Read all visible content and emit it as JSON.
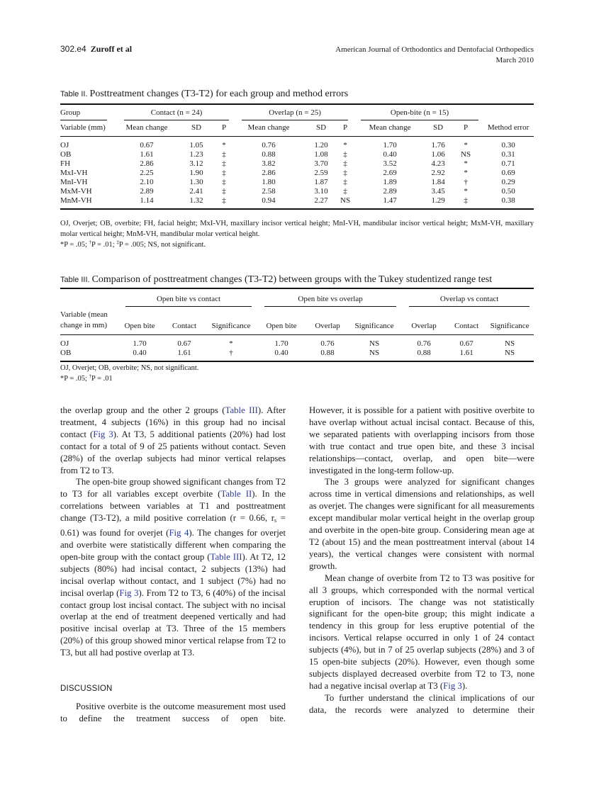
{
  "header": {
    "page": "302.e4",
    "authors": "Zuroff et al",
    "journal": "American Journal of Orthodontics and Dentofacial Orthopedics",
    "date": "March 2010"
  },
  "colors": {
    "link": "#2b3a9c",
    "text": "#1a1a1a"
  },
  "table2": {
    "label": "Table II.",
    "title": "Posttreatment changes (T3-T2) for each group and method errors",
    "group_label": "Group",
    "groups": [
      "Contact (n = 24)",
      "Overlap (n = 25)",
      "Open-bite (n = 15)"
    ],
    "columns": [
      "Variable (mm)",
      "Mean change",
      "SD",
      "P",
      "Mean change",
      "SD",
      "P",
      "Mean change",
      "SD",
      "P",
      "Method error"
    ],
    "rows": [
      [
        "OJ",
        "0.67",
        "1.05",
        "*",
        "0.76",
        "1.20",
        "*",
        "1.70",
        "1.76",
        "*",
        "0.30"
      ],
      [
        "OB",
        "1.61",
        "1.23",
        "‡",
        "0.88",
        "1.08",
        "‡",
        "0.40",
        "1.06",
        "NS",
        "0.31"
      ],
      [
        "FH",
        "2.86",
        "3.12",
        "‡",
        "3.82",
        "3.70",
        "‡",
        "3.52",
        "4.23",
        "*",
        "0.71"
      ],
      [
        "MxI-VH",
        "2.25",
        "1.90",
        "‡",
        "2.86",
        "2.59",
        "‡",
        "2.69",
        "2.92",
        "*",
        "0.69"
      ],
      [
        "MnI-VH",
        "2.10",
        "1.30",
        "‡",
        "1.80",
        "1.87",
        "‡",
        "1.89",
        "1.84",
        "†",
        "0.29"
      ],
      [
        "MxM-VH",
        "2.89",
        "2.41",
        "‡",
        "2.58",
        "3.10",
        "‡",
        "2.89",
        "3.45",
        "*",
        "0.50"
      ],
      [
        "MnM-VH",
        "1.14",
        "1.32",
        "‡",
        "0.94",
        "2.27",
        "NS",
        "1.47",
        "1.29",
        "‡",
        "0.38"
      ]
    ],
    "footnote1": "OJ, Overjet; OB, overbite; FH, facial height; MxI-VH, maxillary incisor vertical height; MnI-VH, mandibular incisor vertical height; MxM-VH, maxillary molar vertical height; MnM-VH, mandibular molar vertical height.",
    "footnote2": [
      "*P = .05; ",
      "†",
      "P = .01; ",
      "‡",
      "P = .005; NS, not significant."
    ]
  },
  "table3": {
    "label": "Table III.",
    "title": "Comparison of posttreatment changes (T3-T2) between groups with the Tukey studentized range test",
    "groups": [
      "Open bite vs contact",
      "Open bite vs overlap",
      "Overlap vs contact"
    ],
    "columns": [
      "Variable (mean change in mm)",
      "Open bite",
      "Contact",
      "Significance",
      "Open bite",
      "Overlap",
      "Significance",
      "Overlap",
      "Contact",
      "Significance"
    ],
    "rows": [
      [
        "OJ",
        "1.70",
        "0.67",
        "*",
        "1.70",
        "0.76",
        "NS",
        "0.76",
        "0.67",
        "NS"
      ],
      [
        "OB",
        "0.40",
        "1.61",
        "†",
        "0.40",
        "0.88",
        "NS",
        "0.88",
        "1.61",
        "NS"
      ]
    ],
    "footnote1": "OJ, Overjet; OB, overbite; NS, not significant.",
    "footnote2": [
      "*P = .05; ",
      "†",
      "P = .01"
    ]
  },
  "body": {
    "left": [
      {
        "type": "p",
        "indent": false,
        "segments": [
          {
            "t": "the overlap group and the other 2 groups ("
          },
          {
            "t": "Table III",
            "k": "link"
          },
          {
            "t": "). After treatment, 4 subjects (16%) in this group had no incisal contact ("
          },
          {
            "t": "Fig 3",
            "k": "link"
          },
          {
            "t": "). At T3, 5 additional patients (20%) had lost contact for a total of 9 of 25 patients without contact. Seven (28%) of the overlap subjects had minor vertical relapses from T2 to T3."
          }
        ]
      },
      {
        "type": "p",
        "indent": true,
        "segments": [
          {
            "t": "The open-bite group showed significant changes from T2 to T3 for all variables except overbite ("
          },
          {
            "t": "Table II",
            "k": "link"
          },
          {
            "t": "). In the correlations between variables at T1 and posttreatment change (T3-T2), a mild positive correlation (r = 0.66, r"
          },
          {
            "t": "s",
            "k": "sub"
          },
          {
            "t": " = 0.61) was found for overjet ("
          },
          {
            "t": "Fig 4",
            "k": "link"
          },
          {
            "t": "). The changes for overjet and overbite were statistically different when comparing the open-bite group with the contact group ("
          },
          {
            "t": "Table III",
            "k": "link"
          },
          {
            "t": "). At T2, 12 subjects (80%) had incisal contact, 2 subjects (13%) had incisal overlap without contact, and 1 subject (7%) had no incisal overlap ("
          },
          {
            "t": "Fig 3",
            "k": "link"
          },
          {
            "t": "). From T2 to T3, 6 (40%) of the incisal contact group lost incisal contact. The subject with no incisal overlap at the end of treatment deepened vertically and had positive incisal overlap at T3. Three of the 15 members (20%) of this group showed minor vertical relapse from T2 to T3, but all had postive overlap at T3."
          }
        ]
      },
      {
        "type": "h",
        "segments": [
          {
            "t": "DISCUSSION"
          }
        ]
      },
      {
        "type": "p",
        "indent": true,
        "last": true,
        "segments": [
          {
            "t": "Positive overbite is the outcome measurement most used to define the treatment success of open bite."
          }
        ]
      }
    ],
    "right": [
      {
        "type": "p",
        "indent": false,
        "segments": [
          {
            "t": "However, it is possible for a patient with positive overbite to have overlap without actual incisal contact. Because of this, we separated patients with overlapping incisors from those with true contact and true open bite, and these 3 incisal relationships—contact, overlap, and open bite—were investigated in the long-term follow-up."
          }
        ]
      },
      {
        "type": "p",
        "indent": true,
        "segments": [
          {
            "t": "The 3 groups were analyzed for significant changes across time in vertical dimensions and relationships, as well as overjet. The changes were significant for all measurements except mandibular molar vertical height in the overlap group and overbite in the open-bite group. Considering mean age at T2 (about 15) and the mean posttreatment interval (about 14 years), the vertical changes were consistent with normal growth."
          }
        ]
      },
      {
        "type": "p",
        "indent": true,
        "segments": [
          {
            "t": "Mean change of overbite from T2 to T3 was positive for all 3 groups, which corresponded with the normal vertical eruption of incisors. The change was not statistically significant for the open-bite group; this might indicate a tendency in this group for less eruptive potential of the incisors. Vertical relapse occurred in only 1 of 24 contact subjects (4%), but in 7 of 25 overlap subjects (28%) and 3 of 15 open-bite subjects (20%). However, even though some subjects displayed decreased overbite from T2 to T3, none had a negative incisal overlap at T3 ("
          },
          {
            "t": "Fig 3",
            "k": "link"
          },
          {
            "t": ")."
          }
        ]
      },
      {
        "type": "p",
        "indent": true,
        "last": true,
        "segments": [
          {
            "t": "To further understand the clinical implications of our data, the records were analyzed to determine their"
          }
        ]
      }
    ]
  }
}
